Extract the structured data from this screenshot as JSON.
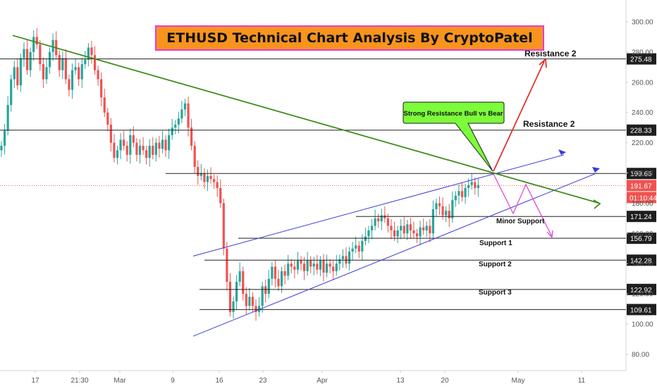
{
  "chart_data": {
    "type": "candlestick",
    "title": "ETHUSD Technical Chart Analysis By CryptoPatel",
    "y_axis": {
      "position": "right",
      "ticks": [
        "300.00",
        "280.00",
        "260.00",
        "240.00",
        "220.00",
        "200.00",
        "180.00",
        "160.00",
        "140.00",
        "120.00",
        "100.00",
        "80.00"
      ],
      "ylim": [
        72,
        310
      ]
    },
    "x_axis": {
      "ticks": [
        {
          "label": "17",
          "color": "#555555"
        },
        {
          "label": "21:30",
          "color": "#555555"
        },
        {
          "label": "Mar",
          "color": "#2e9b4f"
        },
        {
          "label": "9",
          "color": "#2e9b4f"
        },
        {
          "label": "16",
          "color": "#2e9b4f"
        },
        {
          "label": "23",
          "color": "#2e9b4f"
        },
        {
          "label": "Apr",
          "color": "#2e9b4f"
        },
        {
          "label": "13",
          "color": "#2e9b4f"
        },
        {
          "label": "20",
          "color": "#2e9b4f"
        },
        {
          "label": "May",
          "color": "#2e9b4f"
        },
        {
          "label": "11",
          "color": "#2e9b4f"
        }
      ]
    },
    "price_levels": [
      {
        "value": 275.48,
        "label": "275.48",
        "annotation": "Resistance 2"
      },
      {
        "value": 228.33,
        "label": "228.33",
        "annotation": "Resistance 2"
      },
      {
        "value": 199.66,
        "label": "199.66",
        "annotation": ""
      },
      {
        "value": 171.24,
        "label": "171.24",
        "annotation": "Minor Support"
      },
      {
        "value": 156.79,
        "label": "156.79",
        "annotation": "Support 1"
      },
      {
        "value": 142.28,
        "label": "142.28",
        "annotation": "Support 2"
      },
      {
        "value": 122.92,
        "label": "122.92",
        "annotation": "Support 3"
      },
      {
        "value": 109.61,
        "label": "109.61",
        "annotation": ""
      }
    ],
    "current_price": {
      "value": 191.67,
      "label": "191.67",
      "countdown": "01:10:44",
      "color": "#ef5350"
    },
    "callout": "Strong Resistance Bull vs Bear",
    "candles_close": [
      218,
      228,
      245,
      262,
      270,
      258,
      276,
      282,
      268,
      280,
      290,
      285,
      272,
      262,
      270,
      280,
      288,
      278,
      268,
      276,
      262,
      255,
      268,
      270,
      262,
      272,
      275,
      283,
      278,
      268,
      262,
      250,
      240,
      232,
      220,
      210,
      215,
      222,
      218,
      212,
      225,
      220,
      212,
      218,
      215,
      210,
      218,
      212,
      220,
      216,
      222,
      215,
      225,
      230,
      232,
      236,
      242,
      246,
      230,
      218,
      204,
      198,
      200,
      194,
      198,
      196,
      194,
      190,
      180,
      150,
      128,
      108,
      115,
      128,
      135,
      120,
      112,
      118,
      112,
      108,
      112,
      125,
      120,
      130,
      138,
      130,
      125,
      135,
      132,
      140,
      138,
      136,
      142,
      140,
      135,
      142,
      138,
      140,
      136,
      142,
      134,
      140,
      138,
      135,
      140,
      143,
      145,
      140,
      148,
      150,
      152,
      148,
      155,
      158,
      162,
      165,
      170,
      168,
      172,
      170,
      165,
      162,
      158,
      162,
      165,
      160,
      166,
      162,
      160,
      158,
      164,
      162,
      165,
      160,
      176,
      180,
      178,
      172,
      175,
      170,
      182,
      185,
      188,
      184,
      190,
      192,
      194,
      190,
      192
    ],
    "ascending_channel": {
      "upper": [
        [
          0,
          145
        ],
        [
          1,
          212
        ]
      ],
      "lower": [
        [
          0,
          92
        ],
        [
          1,
          200
        ]
      ]
    },
    "descending_trendline": {
      "from": 291,
      "to": 180
    },
    "colors": {
      "bull": "#26a69a",
      "bear": "#ef5350",
      "title_bg": "#f7941d",
      "title_border": "#e53ae0",
      "callout_bg": "#7cfc3a",
      "channel": "#3b3bd8",
      "trendline": "#3f8c1f",
      "projection_up": "#e0201c",
      "projection_down": "#e04ad8"
    }
  }
}
